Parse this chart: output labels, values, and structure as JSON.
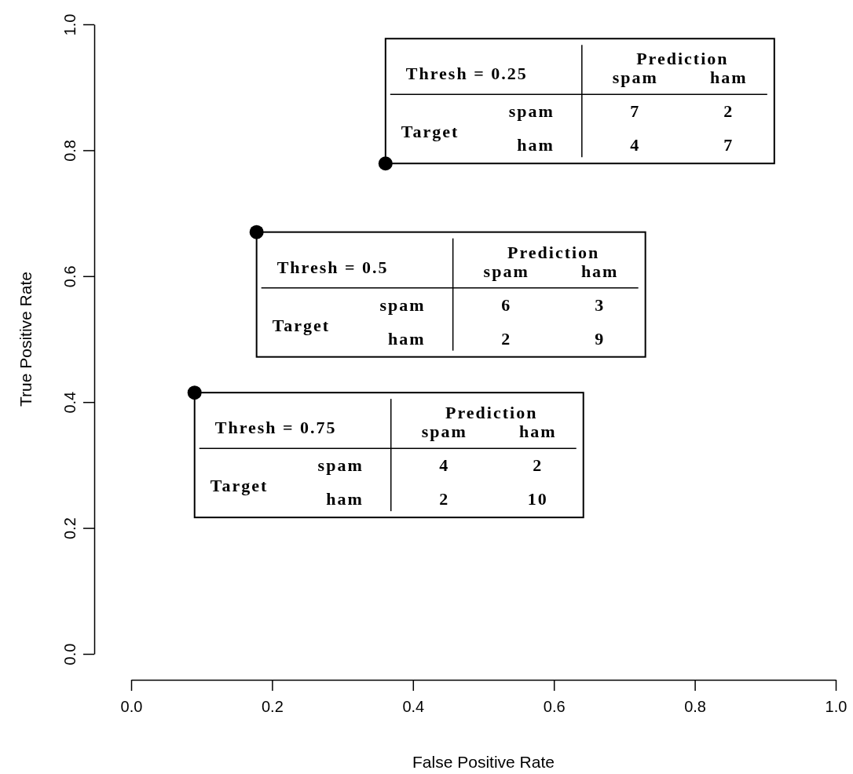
{
  "chart_data": {
    "type": "scatter",
    "xlabel": "False Positive Rate",
    "ylabel": "True Positive Rate",
    "x": [
      0.361,
      0.178,
      0.09
    ],
    "values": [
      0.779,
      0.67,
      0.415
    ],
    "color": "#000000",
    "marker": "circle",
    "grid": false,
    "xlim": [
      0,
      1
    ],
    "ylim": [
      0,
      1
    ],
    "xticks": [
      {
        "value": 0,
        "label": "0.0"
      },
      0.2,
      0.4,
      0.6,
      0.8,
      {
        "value": 1,
        "label": "1.0"
      }
    ],
    "yticks": [
      {
        "value": 0,
        "label": "0.0"
      },
      0.2,
      0.4,
      0.6,
      0.8,
      {
        "value": 1,
        "label": "1.0"
      }
    ],
    "annotations": [
      "Thresh = 0.25",
      "Prediction",
      "spam",
      "ham",
      "Target",
      "spam",
      "ham",
      "7",
      "2",
      "4",
      "7",
      "Thresh = 0.5",
      "Prediction",
      "spam",
      "ham",
      "Target",
      "spam",
      "ham",
      "6",
      "3",
      "2",
      "9",
      "Thresh = 0.75",
      "Prediction",
      "spam",
      "ham",
      "Target",
      "spam",
      "ham",
      "4",
      "2",
      "2",
      "10"
    ]
  }
}
